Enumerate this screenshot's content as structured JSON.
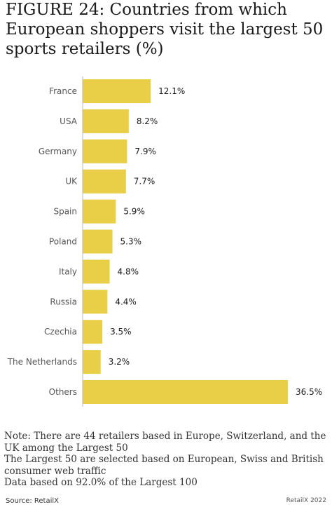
{
  "title": "FIGURE 24: Countries from which European shoppers visit the largest 50 sports retailers (%)",
  "notes": [
    "Note: There are 44 retailers based in Europe, Switzerland, and the UK among the Largest 50",
    "The Largest 50 are selected based on European, Swiss and British consumer web traffic",
    "Data based on 92.0% of the Largest 100"
  ],
  "source": "Source: RetailX",
  "copyright": "RetailX 2022",
  "colors": {
    "bar": "#e8cf47",
    "axis": "#bbbbbb"
  },
  "chart_data": {
    "type": "bar",
    "orientation": "horizontal",
    "categories": [
      "France",
      "USA",
      "Germany",
      "UK",
      "Spain",
      "Poland",
      "Italy",
      "Russia",
      "Czechia",
      "The Netherlands",
      "Others"
    ],
    "values": [
      12.1,
      8.2,
      7.9,
      7.7,
      5.9,
      5.3,
      4.8,
      4.4,
      3.5,
      3.2,
      36.5
    ],
    "value_labels": [
      "12.1%",
      "8.2%",
      "7.9%",
      "7.7%",
      "5.9%",
      "5.3%",
      "4.8%",
      "4.4%",
      "3.5%",
      "3.2%",
      "36.5%"
    ],
    "xlim": [
      0,
      36.5
    ],
    "grid": false,
    "legend": "none"
  }
}
